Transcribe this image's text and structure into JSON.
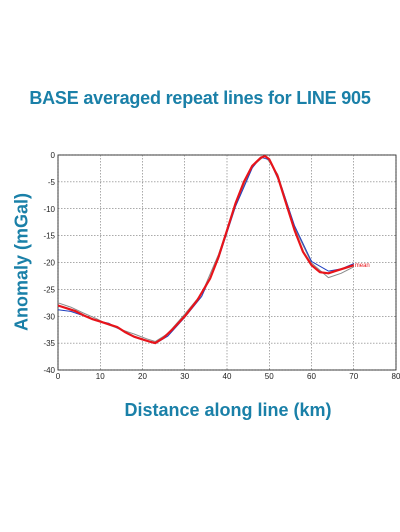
{
  "chart_data": {
    "type": "line",
    "title": "BASE averaged repeat lines for LINE 905",
    "xlabel": "Distance along line (km)",
    "ylabel": "Anomaly (mGal)",
    "xlim": [
      0,
      80
    ],
    "ylim": [
      -40,
      0
    ],
    "xticks": [
      0,
      10,
      20,
      30,
      40,
      50,
      60,
      70,
      80
    ],
    "yticks": [
      0,
      -5,
      -10,
      -15,
      -20,
      -25,
      -30,
      -35,
      -40
    ],
    "grid": true,
    "annotation": "mean",
    "colors": {
      "mean": "#e8141a",
      "repeat_gray": "#8a8a8a",
      "repeat_blue": "#2040c0",
      "title": "#1a80a8"
    },
    "series": [
      {
        "name": "mean",
        "x": [
          0,
          2,
          4,
          6,
          8,
          10,
          12,
          14,
          16,
          18,
          20,
          22,
          23,
          25,
          27,
          30,
          33,
          36,
          38,
          40,
          42,
          44,
          46,
          48,
          49,
          50,
          52,
          54,
          56,
          58,
          60,
          62,
          64,
          66,
          68,
          70
        ],
        "y": [
          -28,
          -28.5,
          -29,
          -29.8,
          -30.5,
          -31,
          -31.5,
          -32,
          -33,
          -33.8,
          -34.3,
          -34.8,
          -35,
          -34,
          -32.5,
          -30,
          -27,
          -23,
          -19,
          -14,
          -9,
          -5,
          -2,
          -0.5,
          -0.2,
          -0.8,
          -4,
          -9,
          -14,
          -18,
          -20.5,
          -21.8,
          -22,
          -21.5,
          -21,
          -20.5
        ]
      },
      {
        "name": "repeat line (gray)",
        "x": [
          0,
          3,
          6,
          9,
          12,
          15,
          18,
          21,
          23,
          26,
          30,
          34,
          38,
          42,
          46,
          49,
          52,
          56,
          60,
          64,
          67,
          70
        ],
        "y": [
          -27.5,
          -28.3,
          -29.4,
          -30.4,
          -31.6,
          -32.5,
          -33.3,
          -34.2,
          -34.7,
          -33.2,
          -29.6,
          -25.8,
          -18.5,
          -9.3,
          -2.1,
          -0.1,
          -3.6,
          -13.5,
          -20.1,
          -22.8,
          -22.0,
          -20.8
        ]
      },
      {
        "name": "repeat line (blue)",
        "x": [
          0,
          3,
          6,
          9,
          12,
          15,
          18,
          21,
          23,
          26,
          30,
          34,
          38,
          42,
          46,
          48,
          50,
          53,
          56,
          60,
          64,
          67,
          70
        ],
        "y": [
          -28.8,
          -29.1,
          -29.9,
          -30.8,
          -31.3,
          -32.6,
          -33.9,
          -34.6,
          -35.1,
          -33.7,
          -30.2,
          -26.3,
          -19.3,
          -9.6,
          -2.4,
          -0.4,
          -0.9,
          -6.1,
          -13.2,
          -19.8,
          -21.6,
          -21.2,
          -20.2
        ]
      }
    ]
  }
}
